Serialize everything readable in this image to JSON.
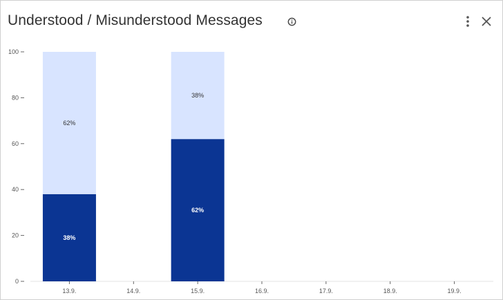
{
  "widget": {
    "title": "Understood / Misunderstood Messages",
    "icons": [
      "info-icon",
      "more-vertical-icon",
      "close-icon"
    ]
  },
  "chart_data": {
    "type": "bar",
    "stacked": true,
    "categories": [
      "13.9.",
      "14.9.",
      "15.9.",
      "16.9.",
      "17.9.",
      "18.9.",
      "19.9."
    ],
    "series": [
      {
        "values": [
          38,
          0,
          62,
          0,
          0,
          0,
          0
        ],
        "labels": [
          "38%",
          "",
          "62%",
          "",
          "",
          "",
          ""
        ],
        "color": "#0b3593"
      },
      {
        "values": [
          62,
          0,
          38,
          0,
          0,
          0,
          0
        ],
        "labels": [
          "62%",
          "",
          "38%",
          "",
          "",
          "",
          ""
        ],
        "color": "#d8e4ff"
      }
    ],
    "ylim": [
      0,
      100
    ],
    "yticks": [
      0,
      20,
      40,
      60,
      80,
      100
    ],
    "grid": false,
    "title": "",
    "xlabel": "",
    "ylabel": ""
  }
}
